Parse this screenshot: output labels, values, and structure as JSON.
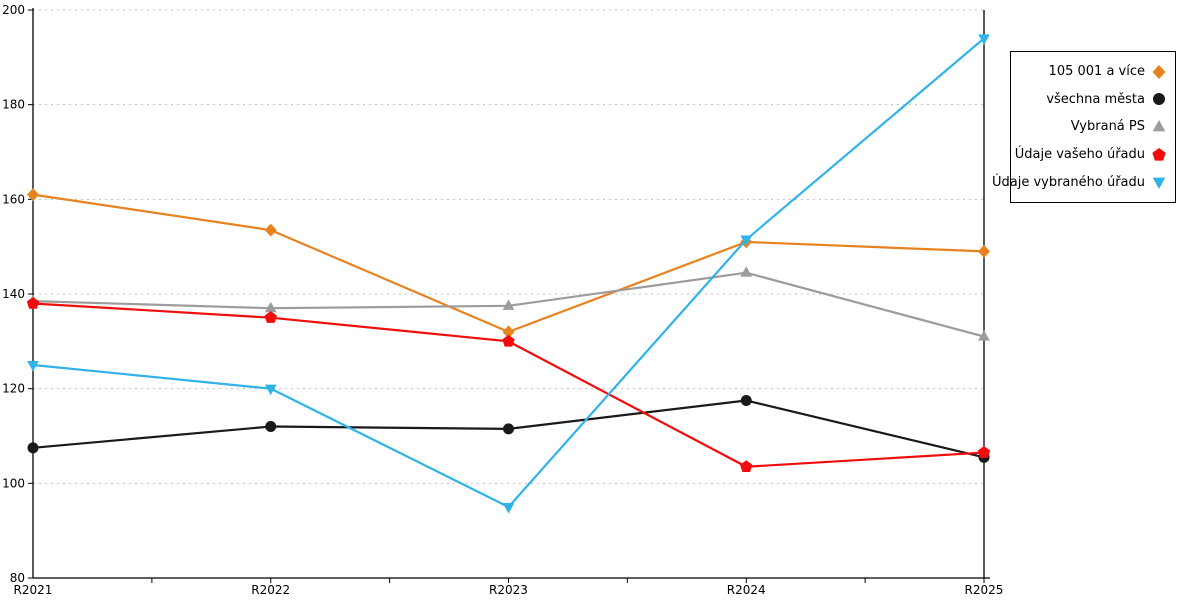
{
  "chart_data": {
    "type": "line",
    "x": [
      "R2021",
      "R2022",
      "R2023",
      "R2024",
      "R2025"
    ],
    "series": [
      {
        "name": "105 001 a více",
        "color": "#E8821E",
        "marker": "diamond",
        "values": [
          161,
          153.5,
          132,
          151,
          149
        ]
      },
      {
        "name": "všechna města",
        "color": "#1A1A1A",
        "marker": "circle",
        "values": [
          107.5,
          112,
          111.5,
          117.5,
          105.5
        ]
      },
      {
        "name": "Vybraná PS",
        "color": "#9C9C9C",
        "marker": "triangle-up",
        "values": [
          138.5,
          137,
          137.5,
          144.5,
          131
        ]
      },
      {
        "name": "Údaje vašeho úřadu",
        "color": "#F20D0D",
        "marker": "pentagon",
        "values": [
          138,
          135,
          130,
          103.5,
          106.5
        ]
      },
      {
        "name": "Údaje vybraného úřadu",
        "color": "#2FB3E8",
        "marker": "triangle-down",
        "values": [
          125,
          120,
          95,
          151.5,
          194
        ]
      }
    ],
    "ylim": [
      80,
      200
    ],
    "yticks": [
      80,
      100,
      120,
      140,
      160,
      180,
      200
    ],
    "xlabel": "",
    "ylabel": "",
    "title": "",
    "grid": true,
    "gridline_color": "#BFBFBF",
    "axis_color": "#000000",
    "legend_position": "right"
  }
}
